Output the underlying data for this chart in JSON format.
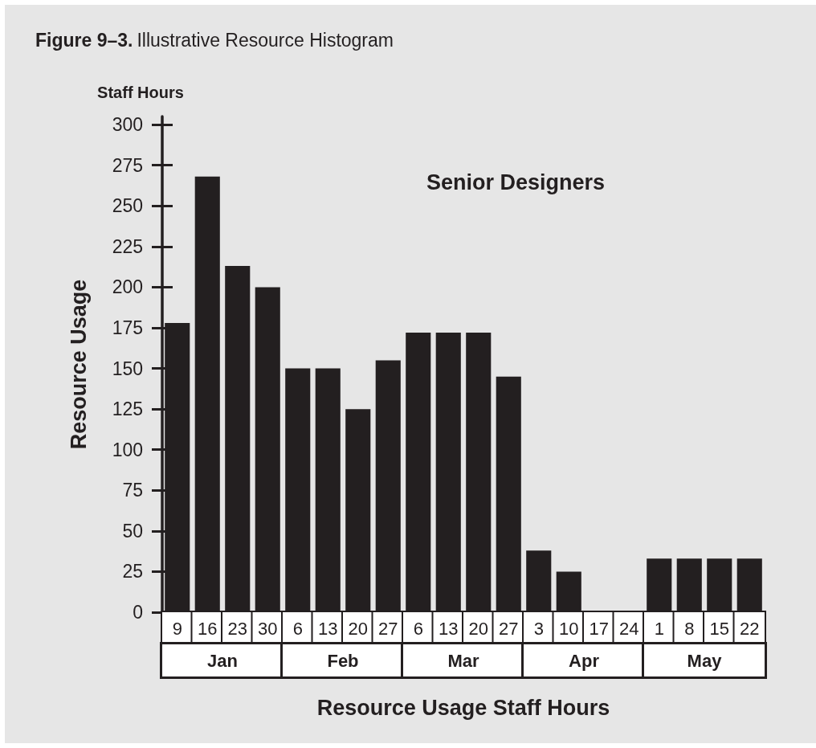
{
  "chart_data": {
    "type": "bar",
    "title": "Figure 9–3.",
    "subtitle": "Illustrative Resource Histogram",
    "xlabel": "Resource Usage Staff Hours",
    "ylabel": "Resource Usage",
    "annotations": [
      "Staff Hours",
      "Senior Designers",
      "Jan",
      "Feb",
      "Mar",
      "Apr",
      "May"
    ],
    "categories": [
      "9",
      "16",
      "23",
      "30",
      "6",
      "13",
      "20",
      "27",
      "6",
      "13",
      "20",
      "27",
      "3",
      "10",
      "17",
      "24",
      "1",
      "8",
      "15",
      "22"
    ],
    "values": [
      178,
      268,
      213,
      200,
      150,
      150,
      125,
      155,
      172,
      172,
      172,
      145,
      38,
      25,
      0,
      0,
      33,
      33,
      33,
      33
    ],
    "color": "#231f20",
    "ylim": [
      0,
      305
    ],
    "yticks": [
      0,
      25,
      50,
      75,
      100,
      125,
      150,
      175,
      200,
      225,
      250,
      275,
      300
    ],
    "grid": false
  }
}
